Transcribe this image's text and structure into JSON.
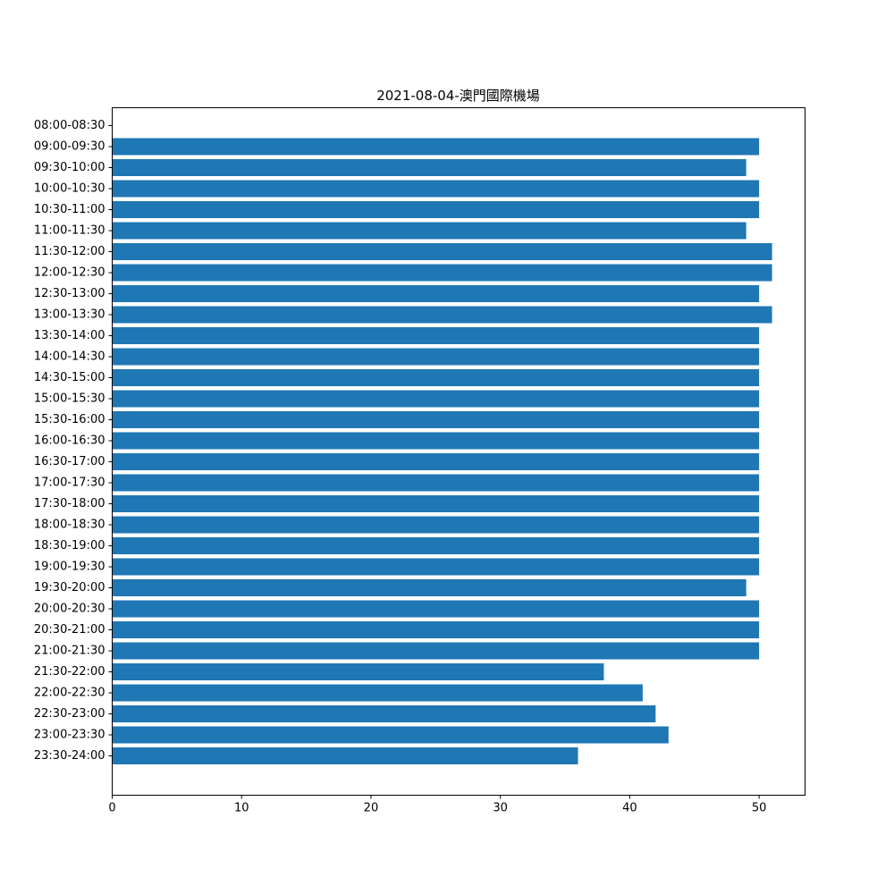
{
  "chart_data": {
    "type": "bar",
    "orientation": "horizontal",
    "title": "2021-08-04-澳門國際機場",
    "xlabel": "",
    "ylabel": "",
    "xlim": [
      0,
      53.55
    ],
    "xticks": [
      0,
      10,
      20,
      30,
      40,
      50
    ],
    "grid": false,
    "bar_color": "#1f77b4",
    "categories": [
      "08:00-08:30",
      "09:00-09:30",
      "09:30-10:00",
      "10:00-10:30",
      "10:30-11:00",
      "11:00-11:30",
      "11:30-12:00",
      "12:00-12:30",
      "12:30-13:00",
      "13:00-13:30",
      "13:30-14:00",
      "14:00-14:30",
      "14:30-15:00",
      "15:00-15:30",
      "15:30-16:00",
      "16:00-16:30",
      "16:30-17:00",
      "17:00-17:30",
      "17:30-18:00",
      "18:00-18:30",
      "18:30-19:00",
      "19:00-19:30",
      "19:30-20:00",
      "20:00-20:30",
      "20:30-21:00",
      "21:00-21:30",
      "21:30-22:00",
      "22:00-22:30",
      "22:30-23:00",
      "23:00-23:30",
      "23:30-24:00"
    ],
    "values": [
      0,
      50,
      49,
      50,
      50,
      49,
      51,
      51,
      50,
      51,
      50,
      50,
      50,
      50,
      50,
      50,
      50,
      50,
      50,
      50,
      50,
      50,
      49,
      50,
      50,
      50,
      38,
      41,
      42,
      43,
      36
    ]
  }
}
